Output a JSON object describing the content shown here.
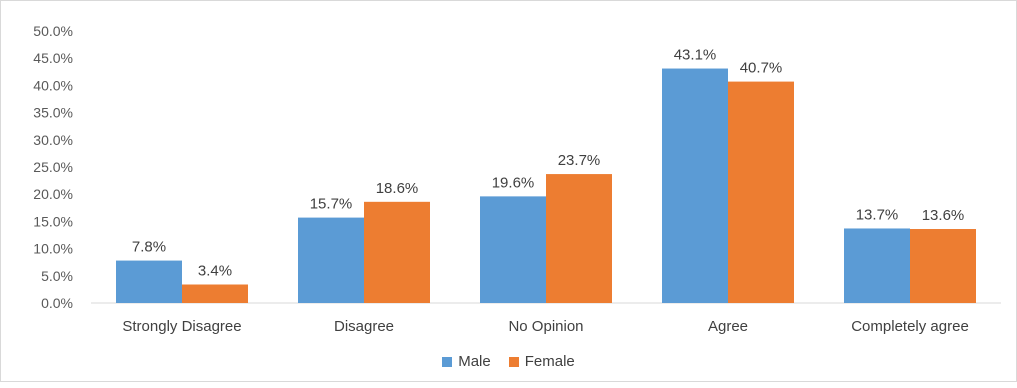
{
  "chart_data": {
    "type": "bar",
    "categories": [
      "Strongly Disagree",
      "Disagree",
      "No Opinion",
      "Agree",
      "Completely agree"
    ],
    "series": [
      {
        "name": "Male",
        "values": [
          7.8,
          15.7,
          19.6,
          43.1,
          13.7
        ],
        "labels": [
          "7.8%",
          "15.7%",
          "19.6%",
          "43.1%",
          "13.7%"
        ],
        "color": "#5b9bd5"
      },
      {
        "name": "Female",
        "values": [
          3.4,
          18.6,
          23.7,
          40.7,
          13.6
        ],
        "labels": [
          "3.4%",
          "18.6%",
          "23.7%",
          "40.7%",
          "13.6%"
        ],
        "color": "#ed7d31"
      }
    ],
    "ylim": [
      0,
      50
    ],
    "yticks": [
      "0.0%",
      "5.0%",
      "10.0%",
      "15.0%",
      "20.0%",
      "25.0%",
      "30.0%",
      "35.0%",
      "40.0%",
      "45.0%",
      "50.0%"
    ],
    "legend_position": "bottom",
    "grid": false
  }
}
